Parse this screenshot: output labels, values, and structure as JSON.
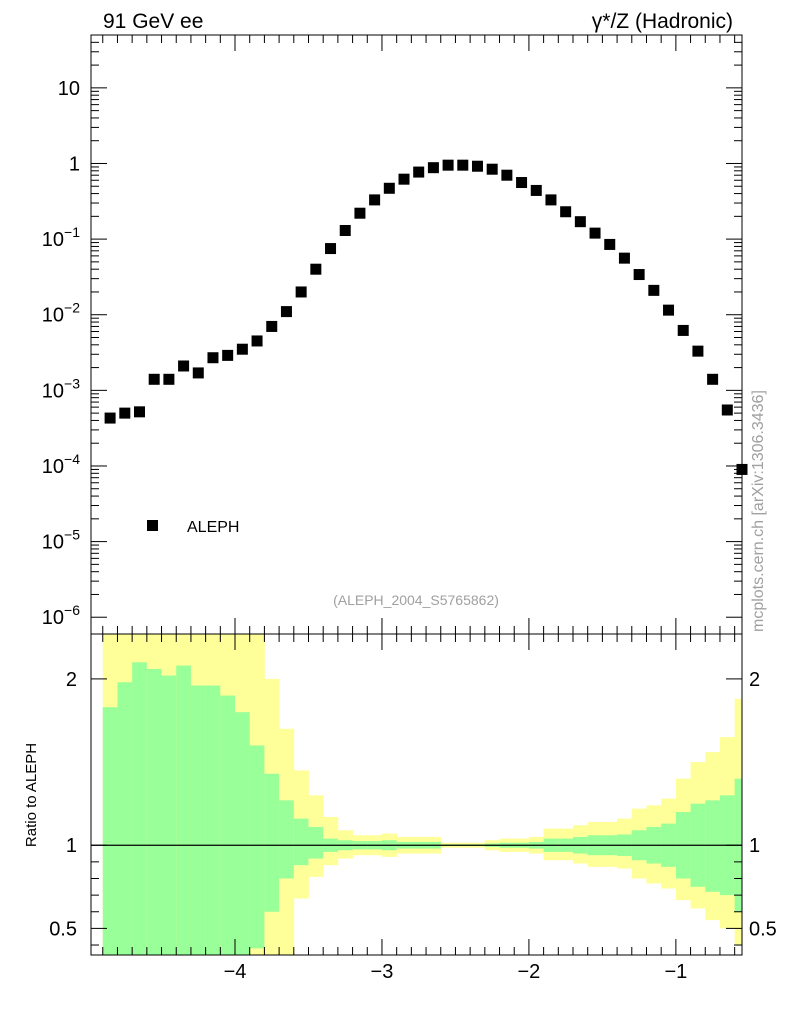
{
  "header": {
    "left_label": "91 GeV ee",
    "right_label": "γ*/Z (Hadronic)"
  },
  "side_label": "mcplots.cern.ch [arXiv:1306.3436]",
  "analysis_label": "(ALEPH_2004_S5765862)",
  "chart_data": [
    {
      "type": "scatter",
      "yscale": "log",
      "xlim": [
        -4.98,
        -0.55
      ],
      "ylim": [
        6e-07,
        50
      ],
      "ytick_labels": [
        "10^-6",
        "10^-5",
        "10^-4",
        "10^-3",
        "10^-2",
        "10^-1",
        "1",
        "10"
      ],
      "legend": {
        "placement": "bottom-left",
        "entries": [
          "ALEPH"
        ]
      },
      "series": [
        {
          "name": "ALEPH",
          "x": [
            -4.85,
            -4.75,
            -4.65,
            -4.55,
            -4.45,
            -4.35,
            -4.25,
            -4.15,
            -4.05,
            -3.95,
            -3.85,
            -3.75,
            -3.65,
            -3.55,
            -3.45,
            -3.35,
            -3.25,
            -3.15,
            -3.05,
            -2.95,
            -2.85,
            -2.75,
            -2.65,
            -2.55,
            -2.45,
            -2.35,
            -2.25,
            -2.15,
            -2.05,
            -1.95,
            -1.85,
            -1.75,
            -1.65,
            -1.55,
            -1.45,
            -1.35,
            -1.25,
            -1.15,
            -1.05,
            -0.95,
            -0.85,
            -0.75,
            -0.65,
            -0.55
          ],
          "y": [
            0.00043,
            0.0005,
            0.00052,
            0.0014,
            0.0014,
            0.0021,
            0.0017,
            0.0027,
            0.0029,
            0.0035,
            0.0045,
            0.007,
            0.011,
            0.02,
            0.04,
            0.075,
            0.13,
            0.22,
            0.33,
            0.47,
            0.62,
            0.77,
            0.88,
            0.95,
            0.95,
            0.92,
            0.84,
            0.7,
            0.56,
            0.44,
            0.33,
            0.23,
            0.17,
            0.12,
            0.085,
            0.056,
            0.034,
            0.021,
            0.0115,
            0.0062,
            0.0033,
            0.0014,
            0.00055,
            9e-05
          ]
        }
      ]
    },
    {
      "type": "area",
      "ylabel": "Ratio to ALEPH",
      "xlim": [
        -4.98,
        -0.55
      ],
      "ylim": [
        0.34,
        2.27
      ],
      "xtick_labels": [
        "−4",
        "−3",
        "−2",
        "−1"
      ],
      "ytick_labels": [
        "0.5",
        "1",
        "2"
      ],
      "reference_line": 1,
      "band_colors": {
        "outer": "#ffff99",
        "inner": "#99ff99",
        "line": "#000000"
      },
      "bins": [
        -4.9,
        -4.8,
        -4.7,
        -4.6,
        -4.5,
        -4.4,
        -4.3,
        -4.2,
        -4.1,
        -4.0,
        -3.9,
        -3.8,
        -3.7,
        -3.6,
        -3.5,
        -3.4,
        -3.3,
        -3.2,
        -3.1,
        -3.0,
        -2.9,
        -2.8,
        -2.7,
        -2.6,
        -2.5,
        -2.4,
        -2.3,
        -2.2,
        -2.1,
        -2.0,
        -1.9,
        -1.8,
        -1.7,
        -1.6,
        -1.5,
        -1.4,
        -1.3,
        -1.2,
        -1.1,
        -1.0,
        -0.9,
        -0.8,
        -0.7,
        -0.6,
        -0.5
      ],
      "inner_high": [
        1.83,
        1.98,
        2.1,
        2.06,
        2.02,
        2.08,
        1.96,
        1.96,
        1.9,
        1.8,
        1.6,
        1.43,
        1.27,
        1.16,
        1.11,
        1.04,
        1.03,
        1.025,
        1.025,
        1.03,
        1.02,
        1.02,
        1.02,
        1.005,
        1.005,
        1.005,
        1.01,
        1.015,
        1.015,
        1.02,
        1.04,
        1.04,
        1.05,
        1.06,
        1.06,
        1.065,
        1.09,
        1.11,
        1.13,
        1.2,
        1.25,
        1.27,
        1.3,
        1.4,
        1.5
      ],
      "inner_low": [
        0.34,
        0.34,
        0.34,
        0.34,
        0.34,
        0.34,
        0.34,
        0.34,
        0.34,
        0.34,
        0.38,
        0.6,
        0.8,
        0.88,
        0.92,
        0.96,
        0.97,
        0.975,
        0.975,
        0.97,
        0.98,
        0.98,
        0.98,
        0.995,
        0.995,
        0.995,
        0.99,
        0.985,
        0.985,
        0.98,
        0.96,
        0.96,
        0.95,
        0.94,
        0.94,
        0.935,
        0.91,
        0.89,
        0.87,
        0.8,
        0.75,
        0.72,
        0.7,
        0.6,
        0.5
      ],
      "outer_high": [
        2.27,
        2.27,
        2.27,
        2.27,
        2.27,
        2.27,
        2.27,
        2.27,
        2.27,
        2.27,
        2.27,
        2.0,
        1.7,
        1.45,
        1.3,
        1.17,
        1.09,
        1.06,
        1.06,
        1.07,
        1.05,
        1.05,
        1.05,
        1.015,
        1.015,
        1.015,
        1.03,
        1.04,
        1.04,
        1.05,
        1.1,
        1.1,
        1.12,
        1.14,
        1.14,
        1.16,
        1.22,
        1.24,
        1.28,
        1.4,
        1.5,
        1.56,
        1.65,
        1.88,
        2.27
      ],
      "outer_low": [
        0.34,
        0.34,
        0.34,
        0.34,
        0.34,
        0.34,
        0.34,
        0.34,
        0.34,
        0.34,
        0.34,
        0.34,
        0.34,
        0.68,
        0.81,
        0.88,
        0.92,
        0.94,
        0.94,
        0.93,
        0.95,
        0.95,
        0.95,
        0.985,
        0.985,
        0.985,
        0.97,
        0.96,
        0.96,
        0.95,
        0.91,
        0.91,
        0.89,
        0.87,
        0.87,
        0.86,
        0.8,
        0.77,
        0.74,
        0.67,
        0.62,
        0.55,
        0.5,
        0.4,
        0.34
      ]
    }
  ]
}
